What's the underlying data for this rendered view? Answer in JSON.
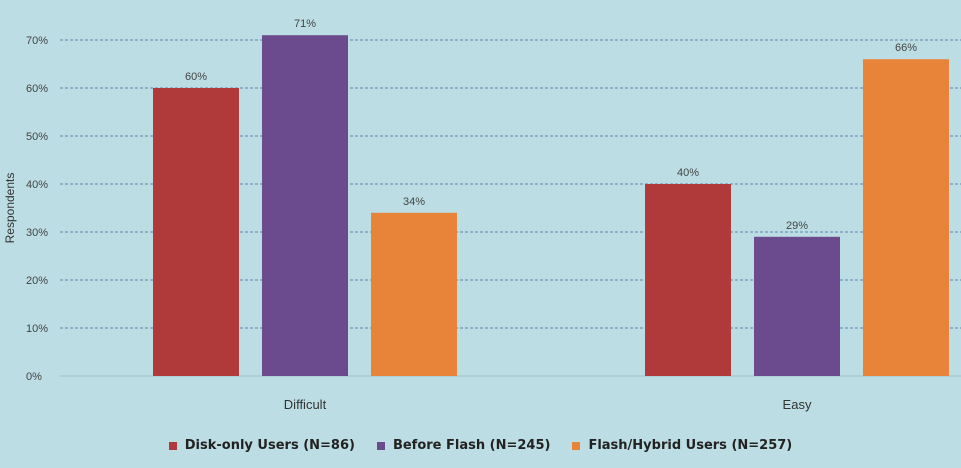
{
  "chart_data": {
    "type": "bar",
    "title": "",
    "xlabel": "",
    "ylabel": "Respondents",
    "ylim": [
      0,
      70
    ],
    "yticks": [
      0,
      10,
      20,
      30,
      40,
      50,
      60,
      70
    ],
    "ytick_labels": [
      "0%",
      "10%",
      "20%",
      "30%",
      "40%",
      "50%",
      "60%",
      "70%"
    ],
    "grid": true,
    "legend_position": "bottom",
    "categories": [
      "Difficult",
      "Easy"
    ],
    "series": [
      {
        "name": "Disk-only Users (N=86)",
        "values": [
          60,
          40
        ],
        "labels": [
          "60%",
          "40%"
        ],
        "color": "#b03a3a"
      },
      {
        "name": "Before Flash (N=245)",
        "values": [
          71,
          29
        ],
        "labels": [
          "71%",
          "29%"
        ],
        "color": "#6b4b8e"
      },
      {
        "name": "Flash/Hybrid Users (N=257)",
        "values": [
          34,
          66
        ],
        "labels": [
          "34%",
          "66%"
        ],
        "color": "#e8843a"
      }
    ]
  }
}
